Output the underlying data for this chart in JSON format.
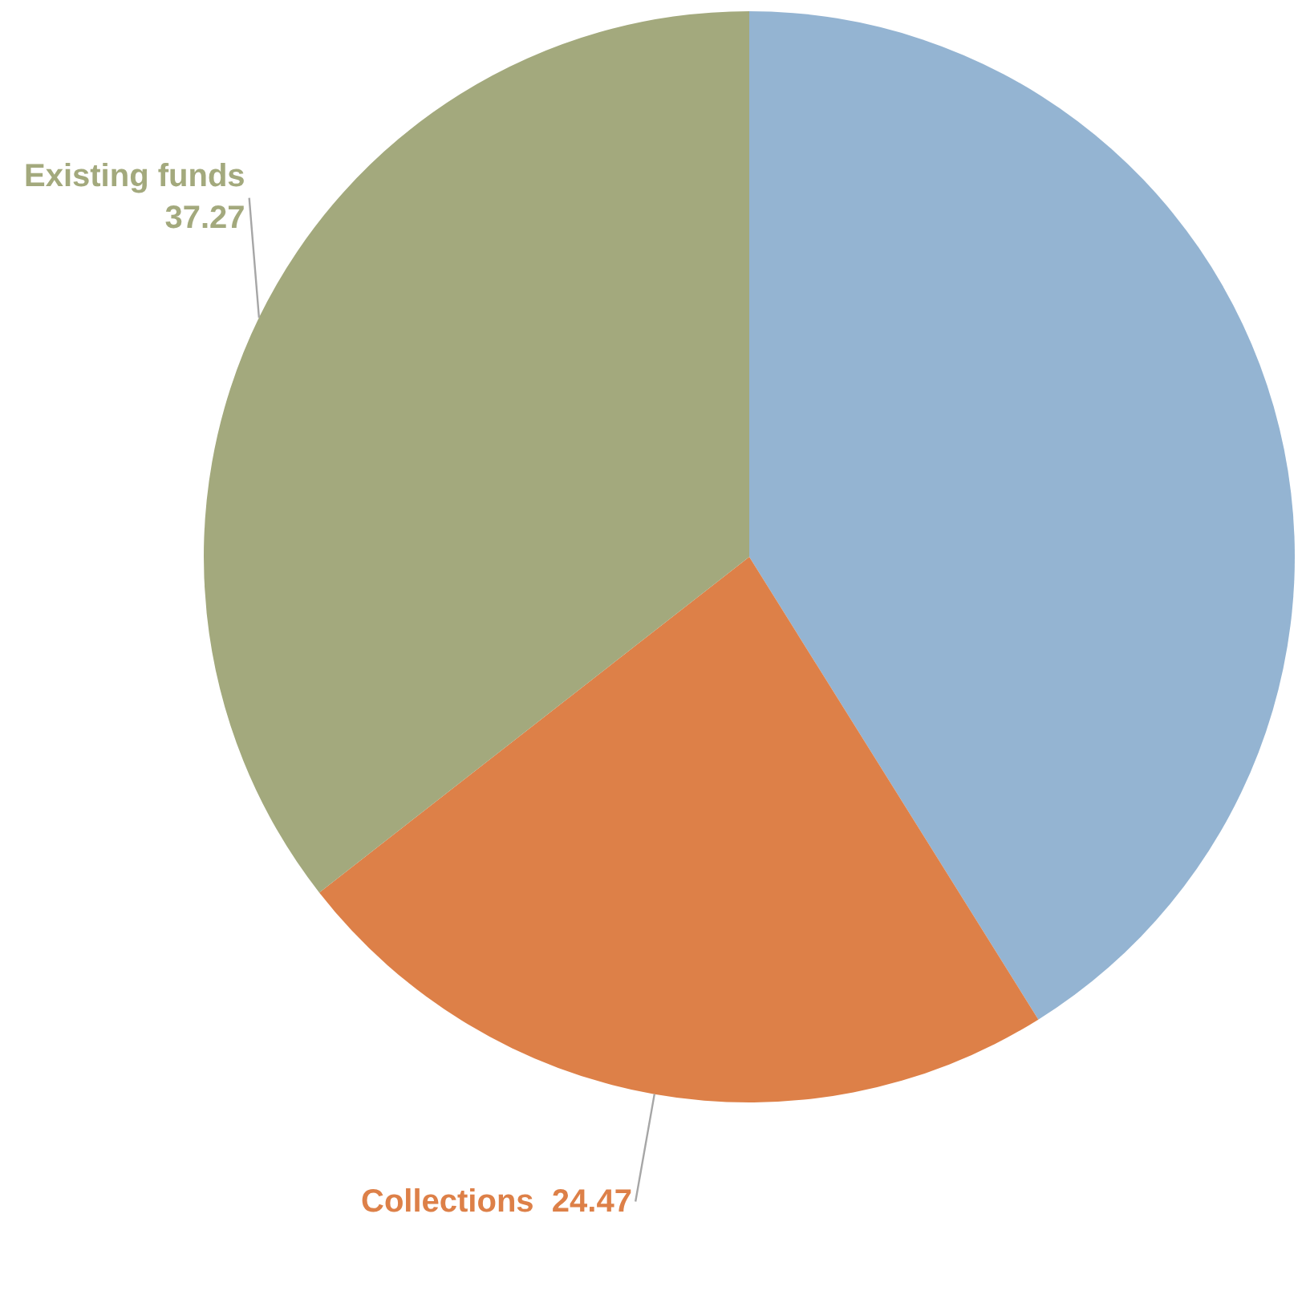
{
  "chart_data": {
    "type": "pie",
    "categories": [
      null,
      "Collections",
      "Existing funds"
    ],
    "values": [
      43.1,
      24.47,
      37.27
    ],
    "value_labels": [
      null,
      "24.47",
      "37.27"
    ],
    "colors": [
      "#94b4d2",
      "#dd8048",
      "#a3a97d"
    ],
    "legend": false
  }
}
